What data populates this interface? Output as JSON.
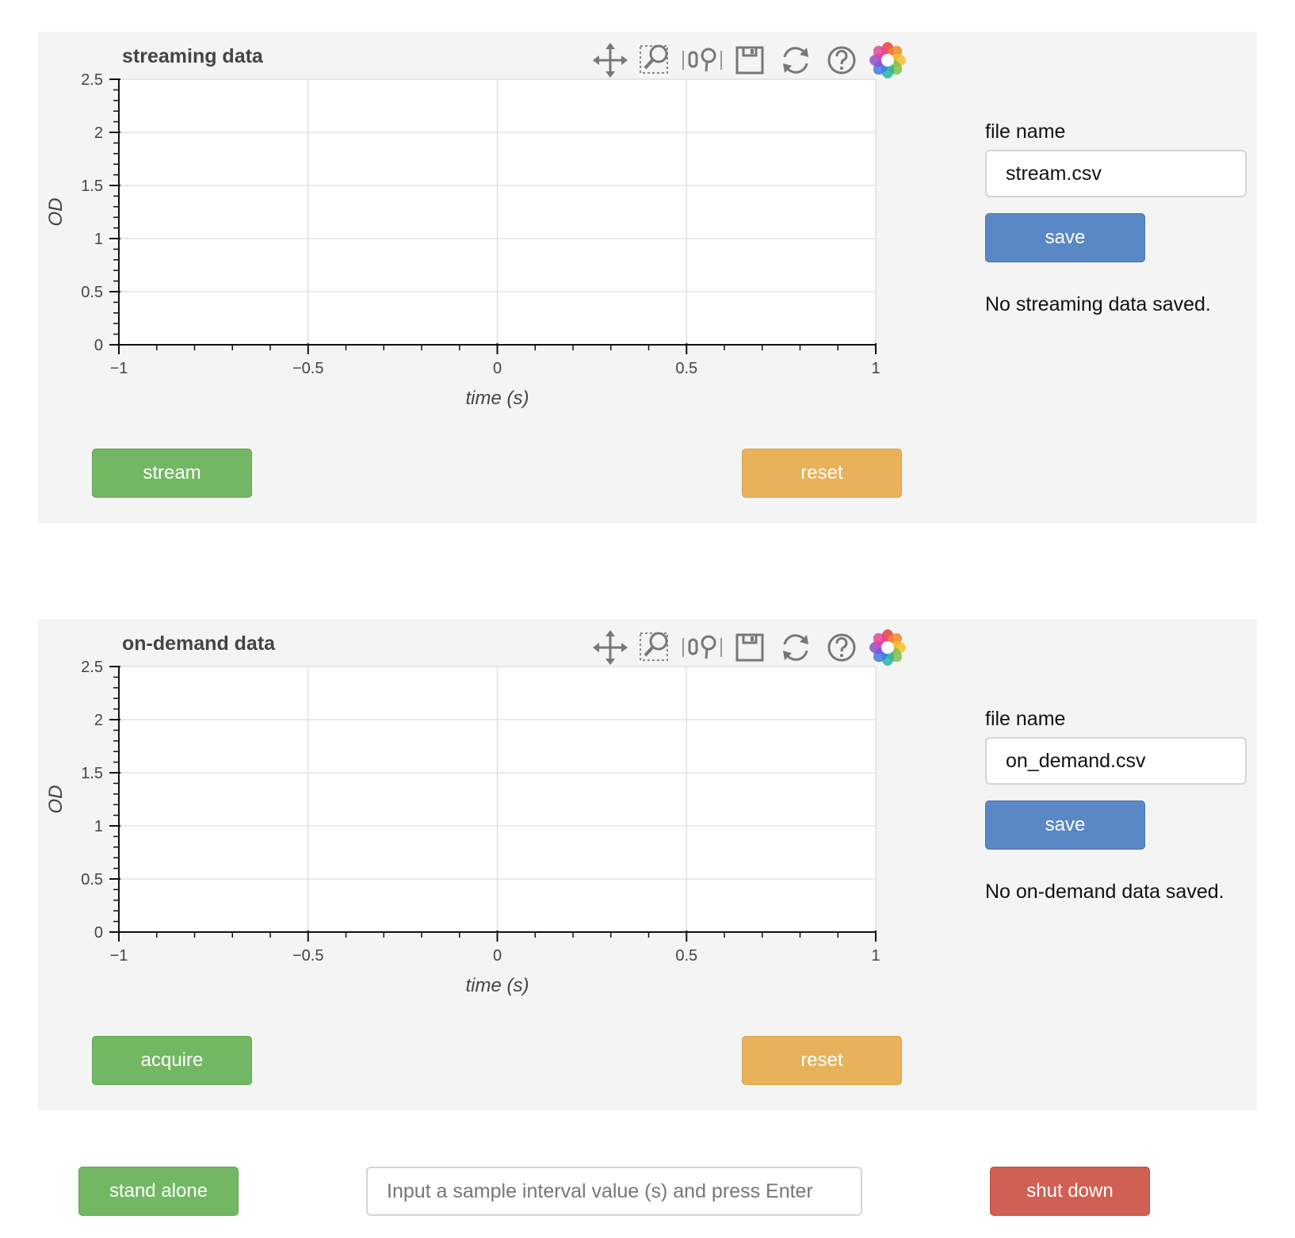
{
  "colors": {
    "panel_bg": "#f4f4f4",
    "green": "#73b765",
    "orange": "#e8b25a",
    "blue": "#5a88c7",
    "red": "#d05f54",
    "active_tool": "#5aa0d8"
  },
  "toolbar_icons": [
    "pan-icon",
    "box-zoom-icon",
    "wheel-zoom-icon",
    "save-icon",
    "reset-icon",
    "help-icon",
    "bokeh-logo-icon"
  ],
  "streaming": {
    "title": "streaming data",
    "file_label": "file name",
    "file_value": "stream.csv",
    "save_label": "save",
    "status": "No streaming data saved.",
    "action_label": "stream",
    "reset_label": "reset"
  },
  "on_demand": {
    "title": "on-demand data",
    "file_label": "file name",
    "file_value": "on_demand.csv",
    "save_label": "save",
    "status": "No on-demand data saved.",
    "action_label": "acquire",
    "reset_label": "reset"
  },
  "footer": {
    "standalone_label": "stand alone",
    "interval_placeholder": "Input a sample interval value (s) and press Enter",
    "shutdown_label": "shut down"
  },
  "chart_data": [
    {
      "type": "line",
      "title": "streaming data",
      "xlabel": "time (s)",
      "ylabel": "OD",
      "xlim": [
        -1,
        1
      ],
      "ylim": [
        0,
        2.5
      ],
      "xticks": [
        "−1",
        "−0.5",
        "0",
        "0.5",
        "1"
      ],
      "yticks": [
        "0",
        "0.5",
        "1",
        "1.5",
        "2",
        "2.5"
      ],
      "grid": true,
      "series": []
    },
    {
      "type": "line",
      "title": "on-demand data",
      "xlabel": "time (s)",
      "ylabel": "OD",
      "xlim": [
        -1,
        1
      ],
      "ylim": [
        0,
        2.5
      ],
      "xticks": [
        "−1",
        "−0.5",
        "0",
        "0.5",
        "1"
      ],
      "yticks": [
        "0",
        "0.5",
        "1",
        "1.5",
        "2",
        "2.5"
      ],
      "grid": true,
      "series": []
    }
  ]
}
